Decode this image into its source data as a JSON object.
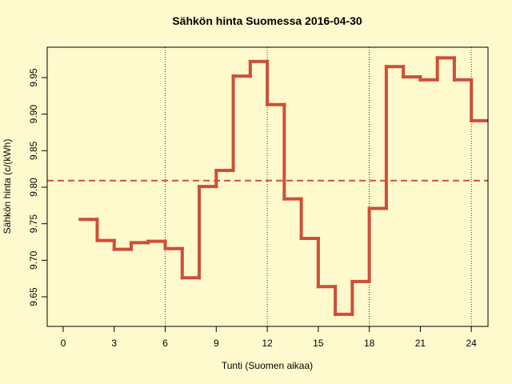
{
  "chart_data": {
    "type": "step",
    "title": "Sähkön hinta Suomessa 2016-04-30",
    "x_label": "Tunti (Suomen aikaa)",
    "y_label": "Sähkön hinta (c/(kWh)",
    "x": [
      1,
      2,
      3,
      4,
      5,
      6,
      7,
      8,
      9,
      10,
      11,
      12,
      13,
      14,
      15,
      16,
      17,
      18,
      19,
      20,
      21,
      22,
      23,
      24
    ],
    "values": [
      9.756,
      9.727,
      9.715,
      9.724,
      9.726,
      9.716,
      9.676,
      9.801,
      9.823,
      9.952,
      9.972,
      9.913,
      9.784,
      9.73,
      9.664,
      9.626,
      9.671,
      9.771,
      9.965,
      9.951,
      9.947,
      9.977,
      9.947,
      9.891
    ],
    "color": "#cd4f39",
    "mean": 9.809,
    "vlines": [
      6,
      12,
      18,
      24
    ],
    "xlim": [
      -0.94,
      24.98
    ],
    "ylim": [
      9.6095,
      9.9916
    ],
    "xticks": [
      0,
      3,
      6,
      9,
      12,
      15,
      18,
      21,
      24
    ],
    "yticks": [
      {
        "value": 9.65,
        "label": "9.65"
      },
      {
        "value": 9.7,
        "label": "9.70"
      },
      9.75,
      {
        "value": 9.8,
        "label": "9.80"
      },
      9.85,
      {
        "value": 9.9,
        "label": "9.90"
      },
      9.95
    ]
  }
}
